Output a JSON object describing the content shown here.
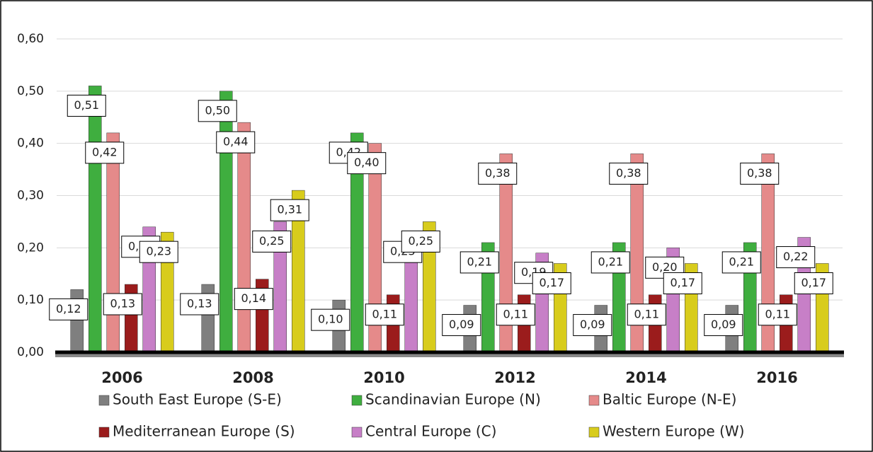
{
  "chart_data": {
    "type": "bar",
    "categories": [
      "2006",
      "2008",
      "2010",
      "2012",
      "2014",
      "2016"
    ],
    "series": [
      {
        "name": "South East Europe (S-E)",
        "color": "#7f7f7f",
        "values": [
          0.12,
          0.13,
          0.1,
          0.09,
          0.09,
          0.09
        ],
        "value_labels": [
          "0,12",
          "0,13",
          "0,10",
          "0,09",
          "0,09",
          "0,09"
        ]
      },
      {
        "name": "Scandinavian Europe (N)",
        "color": "#3fae3f",
        "values": [
          0.51,
          0.5,
          0.42,
          0.21,
          0.21,
          0.21
        ],
        "value_labels": [
          "0,51",
          "0,50",
          "0,42",
          "0,21",
          "0,21",
          "0,21"
        ]
      },
      {
        "name": "Baltic Europe (N-E)",
        "color": "#e58a8a",
        "values": [
          0.42,
          0.44,
          0.4,
          0.38,
          0.38,
          0.38
        ],
        "value_labels": [
          "0,42",
          "0,44",
          "0,40",
          "0,38",
          "0,38",
          "0,38"
        ]
      },
      {
        "name": "Mediterranean Europe (S)",
        "color": "#9b1c1c",
        "values": [
          0.13,
          0.14,
          0.11,
          0.11,
          0.11,
          0.11
        ],
        "value_labels": [
          "0,13",
          "0,14",
          "0,11",
          "0,11",
          "0,11",
          "0,11"
        ]
      },
      {
        "name": "Central Europe (C)",
        "color": "#c77fc7",
        "values": [
          0.24,
          0.25,
          0.23,
          0.19,
          0.2,
          0.22
        ],
        "value_labels": [
          "0,24",
          "0,25",
          "0,23",
          "0,19",
          "0,20",
          "0,22"
        ]
      },
      {
        "name": "Western Europe (W)",
        "color": "#d8cc1c",
        "values": [
          0.23,
          0.31,
          0.25,
          0.17,
          0.17,
          0.17
        ],
        "value_labels": [
          "0,23",
          "0,31",
          "0,25",
          "0,17",
          "0,17",
          "0,17"
        ]
      }
    ],
    "ylim": [
      0,
      0.6
    ],
    "yticks": [
      {
        "value": 0,
        "label": "0,00"
      },
      {
        "value": 0.1,
        "label": "0,10"
      },
      {
        "value": 0.2,
        "label": "0,20"
      },
      {
        "value": 0.3,
        "label": "0,30"
      },
      {
        "value": 0.4,
        "label": "0,40"
      },
      {
        "value": 0.5,
        "label": "0,50"
      },
      {
        "value": 0.6,
        "label": "0,60"
      }
    ],
    "grid": true
  }
}
